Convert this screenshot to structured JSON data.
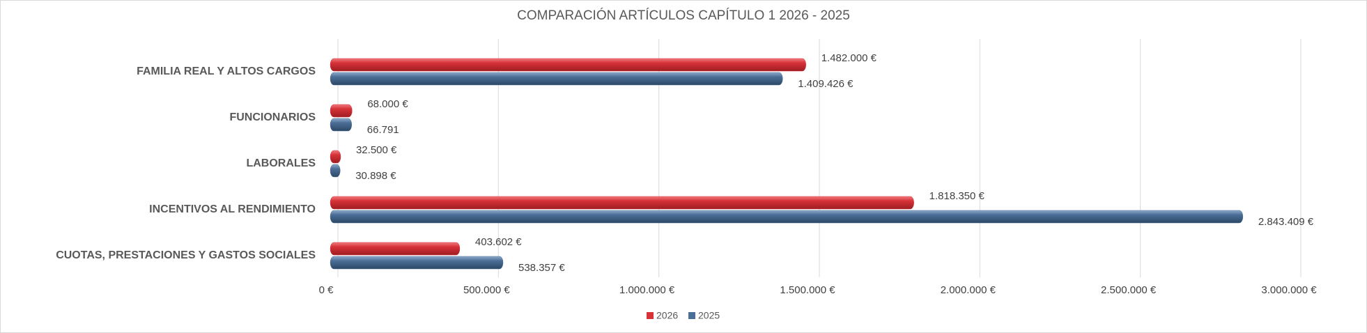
{
  "chart_data": {
    "type": "bar",
    "orientation": "horizontal",
    "title": "COMPARACIÓN ARTÍCULOS CAPÍTULO 1  2026 - 2025",
    "categories": [
      "FAMILIA REAL Y ALTOS CARGOS",
      "FUNCIONARIOS",
      "LABORALES",
      "INCENTIVOS AL RENDIMIENTO",
      "CUOTAS, PRESTACIONES Y GASTOS SOCIALES"
    ],
    "series": [
      {
        "name": "2026",
        "color": "#d63238",
        "values": [
          1482000,
          68000,
          32500,
          1818350,
          403602
        ],
        "value_labels": [
          "1.482.000 €",
          "68.000 €",
          "32.500 €",
          "1.818.350 €",
          "403.602 €"
        ]
      },
      {
        "name": "2025",
        "color": "#4b6e97",
        "values": [
          1409426,
          66791,
          30898,
          2843409,
          538357
        ],
        "value_labels": [
          "1.409.426 €",
          "66.791",
          "30.898 €",
          "2.843.409 €",
          "538.357 €"
        ]
      }
    ],
    "xlim": [
      0,
      3000000
    ],
    "xticks": [
      {
        "value": 0,
        "label": "0 €"
      },
      {
        "value": 500000,
        "label": "500.000 €"
      },
      {
        "value": 1000000,
        "label": "1.000.000 €"
      },
      {
        "value": 1500000,
        "label": "1.500.000 €"
      },
      {
        "value": 2000000,
        "label": "2.000.000 €"
      },
      {
        "value": 2500000,
        "label": "2.500.000 €"
      },
      {
        "value": 3000000,
        "label": "3.000.000 €"
      }
    ],
    "grid": true,
    "legend": "bottom"
  }
}
